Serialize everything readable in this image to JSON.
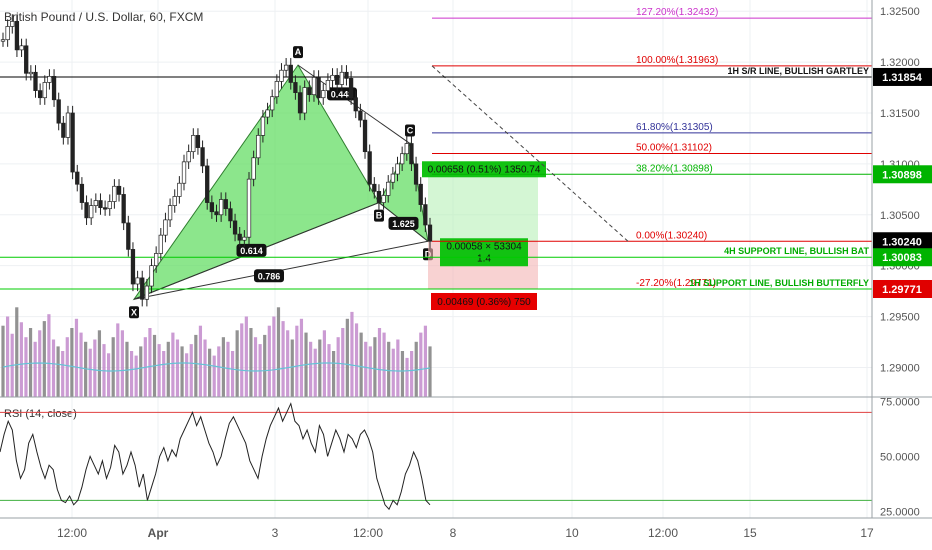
{
  "header": {
    "title": "British Pound / U.S. Dollar, 60, FXCM",
    "rsi_title": "RSI (14, close)"
  },
  "chart_data": {
    "type": "line",
    "symbol": "GBPUSD",
    "price_axis": {
      "ticks": [
        "1.32500",
        "1.32000",
        "1.31500",
        "1.31000",
        "1.30500",
        "1.30000",
        "1.29500",
        "1.29000"
      ],
      "ylim": [
        1.2871,
        1.3261
      ]
    },
    "x_axis": {
      "ticks": [
        "12:00",
        "Apr",
        "3",
        "12:00",
        "8",
        "10",
        "12:00",
        "15",
        "17"
      ]
    },
    "price_markers": [
      {
        "label": "1.31854",
        "value": 1.31854,
        "color": "#000000"
      },
      {
        "label": "1.30898",
        "value": 1.30898,
        "color": "#00b300"
      },
      {
        "label": "1.30240",
        "value": 1.3024,
        "color": "#000000"
      },
      {
        "label": "1.30083",
        "value": 1.30083,
        "color": "#00b300"
      },
      {
        "label": "1.29771",
        "value": 1.29771,
        "color": "#e00000"
      }
    ],
    "fib_levels": [
      {
        "label": "127.20%(1.32432)",
        "value": 1.32432,
        "color": "#cc33cc"
      },
      {
        "label": "100.00%(1.31963)",
        "value": 1.31963,
        "color": "#e00000"
      },
      {
        "label": "61.80%(1.31305)",
        "value": 1.31305,
        "color": "#333399"
      },
      {
        "label": "50.00%(1.31102)",
        "value": 1.31102,
        "color": "#e00000"
      },
      {
        "label": "38.20%(1.30898)",
        "value": 1.30898,
        "color": "#00b300"
      },
      {
        "label": "0.00%(1.30240)",
        "value": 1.3024,
        "color": "#e00000"
      },
      {
        "label": "-27.20%(1.29771)",
        "value": 1.29771,
        "color": "#e00000"
      }
    ],
    "horizontal_lines": [
      {
        "label": "1H S/R LINE, BULLISH GARTLEY",
        "value": 1.31854,
        "color": "#000000"
      },
      {
        "label": "4H SUPPORT LINE, BULLISH BAT",
        "value": 1.30083,
        "color": "#00cc00"
      },
      {
        "label": "1H SUPPORT LINE, BULLISH BUTTERFLY",
        "value": 1.29771,
        "color": "#00cc00"
      }
    ],
    "pattern": {
      "points": [
        {
          "label": "X",
          "value": 1.2967
        },
        {
          "label": "A",
          "value": 1.3197
        },
        {
          "label": "B",
          "value": 1.3062
        },
        {
          "label": "C",
          "value": 1.312
        },
        {
          "label": "D",
          "value": 1.3024
        }
      ],
      "ratios": [
        "0.614",
        "0.786",
        "0.448",
        "1.625"
      ]
    },
    "position": {
      "profit_label": "0.00658 (0.51%) 1350.74",
      "info_label": "0.00058 × 53304",
      "ratio_label": "1.4",
      "loss_label": "0.00469 (0.36%) 750"
    },
    "rsi": {
      "ticks": [
        "75.0000",
        "50.0000",
        "25.0000"
      ],
      "ylim": [
        22,
        77
      ],
      "overbought": 70,
      "oversold": 30,
      "values": [
        52,
        60,
        66,
        62,
        48,
        40,
        44,
        56,
        60,
        52,
        45,
        40,
        46,
        44,
        35,
        30,
        29,
        32,
        28,
        30,
        36,
        44,
        50,
        46,
        42,
        48,
        40,
        45,
        55,
        52,
        42,
        46,
        52,
        46,
        36,
        42,
        30,
        36,
        42,
        50,
        54,
        48,
        53,
        50,
        58,
        62,
        66,
        70,
        64,
        68,
        62,
        56,
        52,
        46,
        50,
        58,
        65,
        68,
        64,
        60,
        56,
        48,
        44,
        40,
        50,
        58,
        64,
        68,
        72,
        66,
        70,
        74,
        66,
        64,
        58,
        62,
        56,
        52,
        64,
        60,
        50,
        56,
        62,
        58,
        52,
        60,
        58,
        54,
        60,
        62,
        58,
        52,
        40,
        34,
        28,
        26,
        30,
        28,
        34,
        42,
        46,
        52,
        48,
        40,
        30,
        28
      ]
    },
    "price_series": [
      1.3222,
      1.3235,
      1.324,
      1.3212,
      1.3216,
      1.3189,
      1.319,
      1.3172,
      1.3165,
      1.318,
      1.3186,
      1.3163,
      1.314,
      1.3126,
      1.315,
      1.3092,
      1.308,
      1.3062,
      1.3047,
      1.3059,
      1.3064,
      1.3057,
      1.3056,
      1.3063,
      1.3078,
      1.307,
      1.3042,
      1.3016,
      1.2982,
      1.2988,
      1.2967,
      1.298,
      1.3,
      1.3012,
      1.303,
      1.3045,
      1.3059,
      1.3068,
      1.3081,
      1.3102,
      1.3112,
      1.3128,
      1.3116,
      1.3098,
      1.3062,
      1.3053,
      1.305,
      1.3065,
      1.3056,
      1.3044,
      1.3031,
      1.3025,
      1.3028,
      1.3085,
      1.3106,
      1.3128,
      1.3146,
      1.3153,
      1.3166,
      1.3181,
      1.3192,
      1.3197,
      1.318,
      1.317,
      1.315,
      1.3175,
      1.3168,
      1.3185,
      1.3165,
      1.3172,
      1.3182,
      1.3187,
      1.3178,
      1.319,
      1.3184,
      1.3165,
      1.3152,
      1.3143,
      1.3112,
      1.308,
      1.3073,
      1.3062,
      1.3069,
      1.3082,
      1.309,
      1.31,
      1.311,
      1.312,
      1.31,
      1.308,
      1.306,
      1.304,
      1.3024
    ],
    "volume": [
      62,
      70,
      55,
      78,
      65,
      52,
      60,
      48,
      58,
      66,
      72,
      50,
      44,
      40,
      52,
      60,
      68,
      56,
      48,
      42,
      50,
      58,
      46,
      38,
      52,
      64,
      58,
      48,
      40,
      36,
      44,
      52,
      60,
      54,
      46,
      40,
      48,
      56,
      50,
      44,
      38,
      46,
      54,
      62,
      50,
      42,
      36,
      44,
      52,
      48,
      40,
      58,
      64,
      70,
      60,
      52,
      46,
      54,
      62,
      70,
      78,
      66,
      58,
      50,
      62,
      68,
      56,
      48,
      42,
      50,
      58,
      46,
      40,
      52,
      60,
      68,
      74,
      64,
      56,
      48,
      44,
      52,
      60,
      56,
      48,
      42,
      50,
      40,
      34,
      40,
      48,
      56,
      62,
      44
    ]
  }
}
